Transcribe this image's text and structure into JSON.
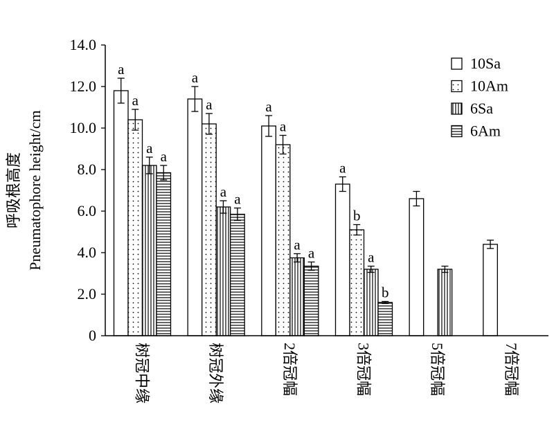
{
  "chart_data": {
    "type": "bar",
    "ylabel": "呼吸根高度",
    "ylabel_en": "Pneumatophore height/cm",
    "ylim": [
      0,
      14
    ],
    "ytick_values": [
      0,
      2,
      4,
      6,
      8,
      10,
      12,
      14
    ],
    "ytick_labels": [
      "0",
      "2.0",
      "4.0",
      "6.0",
      "8.0",
      "10.0",
      "12.0",
      "14.0"
    ],
    "categories": [
      "树冠中缘",
      "树冠外缘",
      "2倍冠幅",
      "3倍冠幅",
      "5倍冠幅",
      "7倍冠幅"
    ],
    "legend_position": "top-right",
    "series": [
      {
        "name": "10Sa",
        "pattern": "open",
        "values": [
          11.8,
          11.4,
          10.1,
          7.3,
          6.6,
          4.4
        ],
        "errors": [
          0.6,
          0.6,
          0.5,
          0.35,
          0.35,
          0.2
        ],
        "letters": [
          "a",
          "a",
          "a",
          "a",
          "",
          ""
        ]
      },
      {
        "name": "10Am",
        "pattern": "dots",
        "values": [
          10.4,
          10.2,
          9.2,
          5.1,
          null,
          null
        ],
        "errors": [
          0.5,
          0.5,
          0.45,
          0.25,
          null,
          null
        ],
        "letters": [
          "a",
          "a",
          "a",
          "b",
          "",
          ""
        ]
      },
      {
        "name": "6Sa",
        "pattern": "vertical-lines",
        "values": [
          8.2,
          6.2,
          3.75,
          3.2,
          3.2,
          null
        ],
        "errors": [
          0.4,
          0.3,
          0.2,
          0.15,
          0.15,
          null
        ],
        "letters": [
          "a",
          "a",
          "a",
          "a",
          "",
          ""
        ]
      },
      {
        "name": "6Am",
        "pattern": "horizontal-lines",
        "values": [
          7.85,
          5.85,
          3.35,
          1.6,
          null,
          null
        ],
        "errors": [
          0.35,
          0.3,
          0.2,
          0.05,
          null,
          null
        ],
        "letters": [
          "a",
          "a",
          "a",
          "b",
          "",
          ""
        ]
      }
    ]
  }
}
